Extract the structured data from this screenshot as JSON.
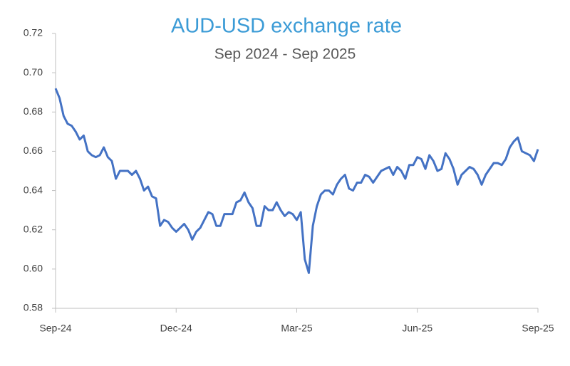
{
  "chart_data": {
    "type": "line",
    "title": "AUD-USD exchange rate",
    "subtitle": "Sep 2024 - Sep 2025",
    "categories": [
      "Sep-24",
      null,
      null,
      null,
      null,
      null,
      null,
      null,
      null,
      null,
      null,
      null,
      null,
      null,
      null,
      null,
      null,
      null,
      null,
      null,
      null,
      null,
      null,
      null,
      null,
      null,
      null,
      null,
      null,
      null,
      "Dec-24",
      null,
      null,
      null,
      null,
      null,
      null,
      null,
      null,
      null,
      null,
      null,
      null,
      null,
      null,
      null,
      null,
      null,
      null,
      null,
      null,
      null,
      null,
      null,
      null,
      null,
      null,
      null,
      null,
      null,
      "Mar-25",
      null,
      null,
      null,
      null,
      null,
      null,
      null,
      null,
      null,
      null,
      null,
      null,
      null,
      null,
      null,
      null,
      null,
      null,
      null,
      null,
      null,
      null,
      null,
      null,
      null,
      null,
      null,
      null,
      null,
      "Jun-25",
      null,
      null,
      null,
      null,
      null,
      null,
      null,
      null,
      null,
      null,
      null,
      null,
      null,
      null,
      null,
      null,
      null,
      null,
      null,
      null,
      null,
      null,
      null,
      null,
      null,
      null,
      null,
      null,
      null,
      "Sep-25"
    ],
    "values": [
      0.692,
      0.687,
      0.678,
      0.674,
      0.673,
      0.67,
      0.666,
      0.668,
      0.66,
      0.658,
      0.657,
      0.658,
      0.662,
      0.657,
      0.655,
      0.646,
      0.65,
      0.65,
      0.65,
      0.648,
      0.65,
      0.646,
      0.64,
      0.642,
      0.637,
      0.636,
      0.622,
      0.625,
      0.624,
      0.621,
      0.619,
      0.621,
      0.623,
      0.62,
      0.615,
      0.619,
      0.621,
      0.625,
      0.629,
      0.628,
      0.622,
      0.622,
      0.628,
      0.628,
      0.628,
      0.634,
      0.635,
      0.639,
      0.634,
      0.631,
      0.622,
      0.622,
      0.632,
      0.63,
      0.63,
      0.634,
      0.63,
      0.627,
      0.629,
      0.628,
      0.625,
      0.629,
      0.605,
      0.598,
      0.622,
      0.632,
      0.638,
      0.64,
      0.64,
      0.638,
      0.643,
      0.646,
      0.648,
      0.641,
      0.64,
      0.644,
      0.644,
      0.648,
      0.647,
      0.644,
      0.647,
      0.65,
      0.651,
      0.652,
      0.648,
      0.652,
      0.65,
      0.646,
      0.653,
      0.653,
      0.657,
      0.656,
      0.651,
      0.658,
      0.655,
      0.65,
      0.651,
      0.659,
      0.656,
      0.651,
      0.643,
      0.648,
      0.65,
      0.652,
      0.651,
      0.648,
      0.643,
      0.648,
      0.651,
      0.654,
      0.654,
      0.653,
      0.656,
      0.662,
      0.665,
      0.667,
      0.66,
      0.659,
      0.658,
      0.655,
      0.661
    ],
    "color": "#4472c4",
    "ylim": [
      0.58,
      0.72
    ],
    "yticks": [
      0.58,
      {
        "value": 0.6,
        "label": "0.60"
      },
      0.62,
      0.64,
      0.66,
      0.68,
      {
        "value": 0.7,
        "label": "0.70"
      },
      0.72
    ],
    "grid": false
  }
}
